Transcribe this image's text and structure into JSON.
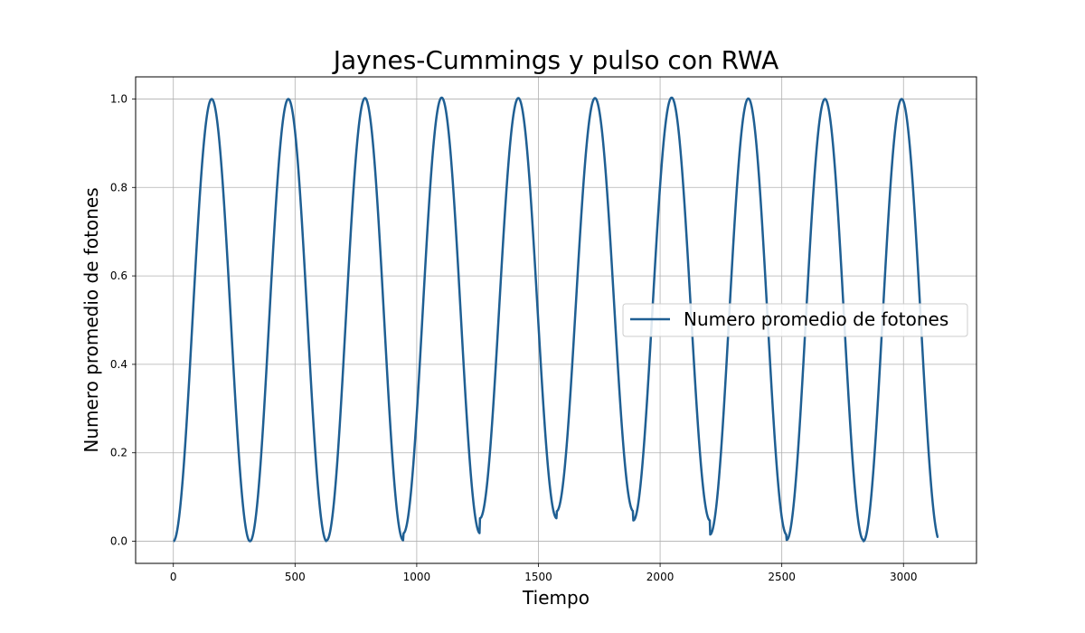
{
  "chart_data": {
    "type": "line",
    "title": "Jaynes-Cummings y pulso con RWA",
    "xlabel": "Tiempo",
    "ylabel": "Numero promedio de fotones",
    "xlim": [
      -155,
      3300
    ],
    "ylim": [
      -0.05,
      1.05
    ],
    "xticks": [
      0,
      500,
      1000,
      1500,
      2000,
      2500,
      3000
    ],
    "yticks": [
      0.0,
      0.2,
      0.4,
      0.6,
      0.8,
      1.0
    ],
    "xtick_labels": [
      "0",
      "500",
      "1000",
      "1500",
      "2000",
      "2500",
      "3000"
    ],
    "ytick_labels": [
      "0.0",
      "0.2",
      "0.4",
      "0.6",
      "0.8",
      "1.0"
    ],
    "grid": true,
    "legend_position": "center-right",
    "series": [
      {
        "name": "Numero promedio de fotones",
        "color": "#1f5f93",
        "period": 315,
        "x_start": 0,
        "x_end": 3140,
        "minima": [
          [
            0,
            0.0
          ],
          [
            315,
            0.0
          ],
          [
            630,
            0.002
          ],
          [
            945,
            0.018
          ],
          [
            1260,
            0.052
          ],
          [
            1575,
            0.068
          ],
          [
            1890,
            0.047
          ],
          [
            2205,
            0.015
          ],
          [
            2520,
            0.003
          ],
          [
            2835,
            0.0
          ]
        ],
        "maxima": [
          [
            157,
            1.0
          ],
          [
            472,
            1.0
          ],
          [
            787,
            1.002
          ],
          [
            1102,
            1.003
          ],
          [
            1417,
            1.002
          ],
          [
            1732,
            1.002
          ],
          [
            2047,
            1.003
          ],
          [
            2362,
            1.001
          ],
          [
            2677,
            1.0
          ],
          [
            2992,
            1.0
          ]
        ],
        "end_value": 0.01
      }
    ]
  }
}
